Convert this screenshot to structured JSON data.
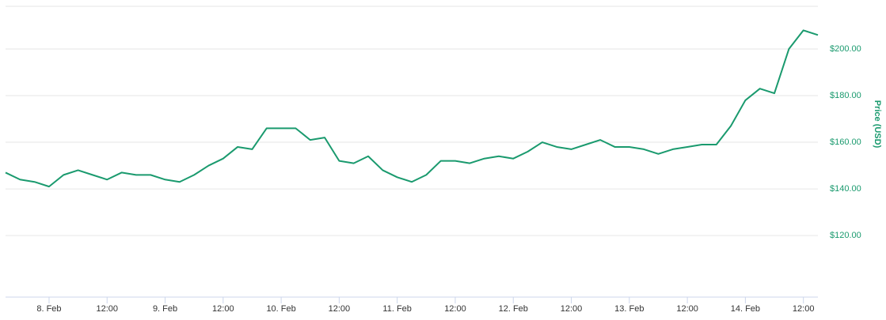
{
  "chart_data": {
    "type": "line",
    "y_axis_label": "Price (USD)",
    "x": [
      -9,
      -6,
      -3,
      0,
      3,
      6,
      9,
      12,
      15,
      18,
      21,
      24,
      27,
      30,
      33,
      36,
      39,
      42,
      45,
      48,
      51,
      54,
      57,
      60,
      63,
      66,
      69,
      72,
      75,
      78,
      81,
      84,
      87,
      90,
      93,
      96,
      99,
      102,
      105,
      108,
      111,
      114,
      117,
      120,
      123,
      126,
      129,
      132,
      135,
      138,
      141,
      144,
      147,
      150,
      153,
      156,
      159
    ],
    "series": [
      {
        "name": "Price",
        "color": "#1a9a6e",
        "values": [
          147,
          144,
          143,
          141,
          146,
          148,
          146,
          144,
          147,
          146,
          146,
          144,
          143,
          146,
          150,
          153,
          158,
          157,
          166,
          166,
          166,
          161,
          162,
          152,
          151,
          154,
          148,
          145,
          143,
          146,
          152,
          152,
          151,
          153,
          154,
          153,
          156,
          160,
          158,
          157,
          159,
          161,
          158,
          158,
          157,
          155,
          157,
          158,
          159,
          159,
          167,
          178,
          183,
          181,
          200,
          208,
          206
        ]
      }
    ],
    "xlim": [
      -9,
      159
    ],
    "xticks": [
      {
        "value": 0,
        "label": "8. Feb"
      },
      {
        "value": 12,
        "label": "12:00"
      },
      {
        "value": 24,
        "label": "9. Feb"
      },
      {
        "value": 36,
        "label": "12:00"
      },
      {
        "value": 48,
        "label": "10. Feb"
      },
      {
        "value": 60,
        "label": "12:00"
      },
      {
        "value": 72,
        "label": "11. Feb"
      },
      {
        "value": 84,
        "label": "12:00"
      },
      {
        "value": 96,
        "label": "12. Feb"
      },
      {
        "value": 108,
        "label": "12:00"
      },
      {
        "value": 120,
        "label": "13. Feb"
      },
      {
        "value": 132,
        "label": "12:00"
      },
      {
        "value": 144,
        "label": "14. Feb"
      },
      {
        "value": 156,
        "label": "12:00"
      }
    ],
    "ylim": [
      93.6,
      218.3
    ],
    "yticks": [
      {
        "value": 120,
        "label": "$120.00"
      },
      {
        "value": 140,
        "label": "$140.00"
      },
      {
        "value": 160,
        "label": "$160.00"
      },
      {
        "value": 180,
        "label": "$180.00"
      },
      {
        "value": 200,
        "label": "$200.00"
      }
    ],
    "grid": true
  }
}
